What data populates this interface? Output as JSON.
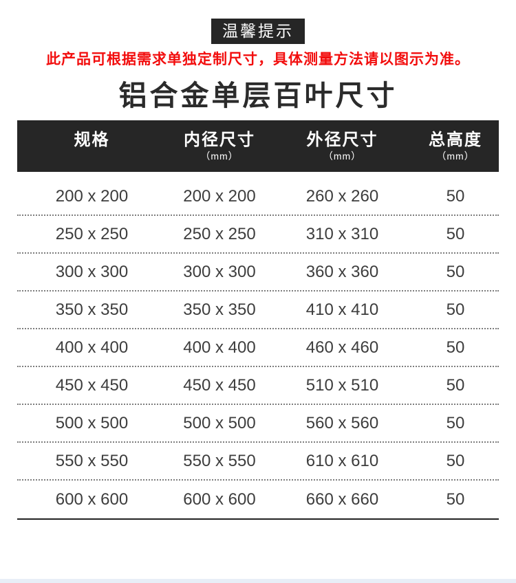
{
  "badge": {
    "label": "温馨提示"
  },
  "notice": "此产品可根据需求单独定制尺寸，具体测量方法请以图示为准。",
  "title": "铝合金单层百叶尺寸",
  "table": {
    "columns": [
      {
        "label": "规格",
        "unit": ""
      },
      {
        "label": "内径尺寸",
        "unit": "（mm）"
      },
      {
        "label": "外径尺寸",
        "unit": "（mm）"
      },
      {
        "label": "总高度",
        "unit": "（mm）"
      }
    ],
    "rows": [
      [
        "200 x 200",
        "200 x 200",
        "260 x 260",
        "50"
      ],
      [
        "250 x 250",
        "250 x 250",
        "310 x 310",
        "50"
      ],
      [
        "300 x 300",
        "300 x 300",
        "360 x 360",
        "50"
      ],
      [
        "350 x 350",
        "350 x 350",
        "410 x 410",
        "50"
      ],
      [
        "400 x 400",
        "400 x 400",
        "460 x 460",
        "50"
      ],
      [
        "450 x 450",
        "450 x 450",
        "510 x 510",
        "50"
      ],
      [
        "500 x 500",
        "500 x 500",
        "560 x 560",
        "50"
      ],
      [
        "550 x 550",
        "550 x 550",
        "610 x 610",
        "50"
      ],
      [
        "600 x 600",
        "600 x 600",
        "660 x 660",
        "50"
      ]
    ]
  },
  "colors": {
    "header_bg": "#262626",
    "notice_red": "#f20d0d",
    "row_text": "#3d3d3d",
    "footer_strip": "#e8eef7"
  }
}
